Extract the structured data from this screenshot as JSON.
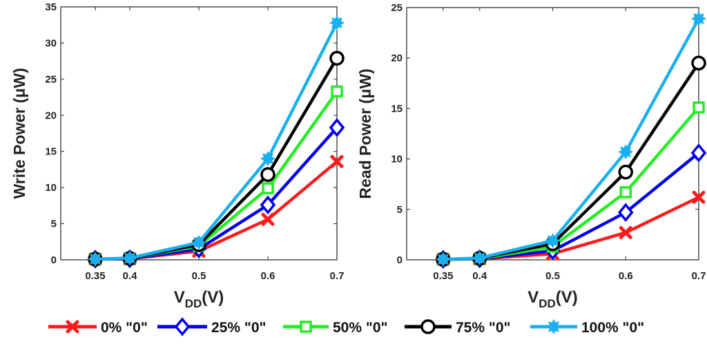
{
  "legend": {
    "placement": "bottom",
    "entries": [
      {
        "label": "0% \"0\"",
        "color": "#ff1a1a",
        "marker": "x"
      },
      {
        "label": "25% \"0\"",
        "color": "#0000ee",
        "marker": "diamond"
      },
      {
        "label": "50% \"0\"",
        "color": "#22ee22",
        "marker": "square"
      },
      {
        "label": "75% \"0\"",
        "color": "#000000",
        "marker": "circle"
      },
      {
        "label": "100% \"0\"",
        "color": "#1ab0f0",
        "marker": "star"
      }
    ]
  },
  "chart_data": [
    {
      "type": "line",
      "ylabel": "Write Power (μW)",
      "xlabel_main": "V",
      "xlabel_sub": "DD",
      "xlabel_suffix": "(V)",
      "x": [
        0.35,
        0.4,
        0.5,
        0.6,
        0.7
      ],
      "x_tick_labels": [
        "0.35",
        "0.4",
        "0.5",
        "0.6",
        "0.7"
      ],
      "xlim": [
        0.3,
        0.7
      ],
      "ylim": [
        0,
        35
      ],
      "y_ticks": [
        0,
        5,
        10,
        15,
        20,
        25,
        30,
        35
      ],
      "grid": false,
      "series": [
        {
          "name": "0% \"0\"",
          "values": [
            0.1,
            0.15,
            1.2,
            5.6,
            13.6
          ]
        },
        {
          "name": "25% \"0\"",
          "values": [
            0.1,
            0.15,
            1.5,
            7.6,
            18.3
          ]
        },
        {
          "name": "50% \"0\"",
          "values": [
            0.1,
            0.2,
            1.9,
            9.9,
            23.3
          ]
        },
        {
          "name": "75% \"0\"",
          "values": [
            0.1,
            0.2,
            2.1,
            11.8,
            27.9
          ]
        },
        {
          "name": "100% \"0\"",
          "values": [
            0.1,
            0.25,
            2.4,
            14.0,
            32.8
          ]
        }
      ]
    },
    {
      "type": "line",
      "ylabel": "Read Power (μW)",
      "xlabel_main": "V",
      "xlabel_sub": "DD",
      "xlabel_suffix": "(V)",
      "x": [
        0.35,
        0.4,
        0.5,
        0.6,
        0.7
      ],
      "x_tick_labels": [
        "0.35",
        "0.4",
        "0.5",
        "0.6",
        "0.7"
      ],
      "xlim": [
        0.3,
        0.7
      ],
      "ylim": [
        0,
        25
      ],
      "y_ticks": [
        0,
        5,
        10,
        15,
        20,
        25
      ],
      "grid": false,
      "series": [
        {
          "name": "0% \"0\"",
          "values": [
            0.05,
            0.1,
            0.6,
            2.7,
            6.2
          ]
        },
        {
          "name": "25% \"0\"",
          "values": [
            0.05,
            0.1,
            0.9,
            4.7,
            10.6
          ]
        },
        {
          "name": "50% \"0\"",
          "values": [
            0.05,
            0.12,
            1.3,
            6.7,
            15.1
          ]
        },
        {
          "name": "75% \"0\"",
          "values": [
            0.05,
            0.15,
            1.6,
            8.7,
            19.5
          ]
        },
        {
          "name": "100% \"0\"",
          "values": [
            0.05,
            0.18,
            1.9,
            10.7,
            23.9
          ]
        }
      ]
    }
  ]
}
